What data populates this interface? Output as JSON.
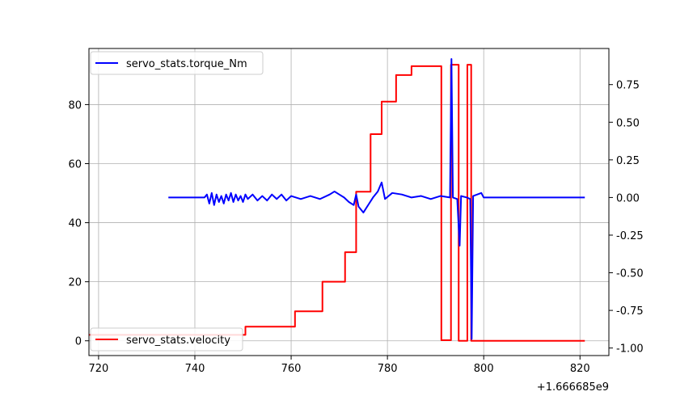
{
  "chart_data": {
    "type": "line",
    "x_offset_label": "+1.666685e9",
    "x_axis": {
      "lim": [
        718,
        826
      ],
      "ticks": [
        720,
        740,
        760,
        780,
        800,
        820
      ]
    },
    "y_left": {
      "lim": [
        -5,
        99
      ],
      "ticks": [
        0,
        20,
        40,
        60,
        80
      ]
    },
    "y_right": {
      "lim": [
        -1.05,
        0.99
      ],
      "ticks": [
        -1.0,
        -0.75,
        -0.5,
        -0.25,
        0.0,
        0.25,
        0.5,
        0.75
      ]
    },
    "grid": true,
    "series": [
      {
        "name": "servo_stats.velocity",
        "axis": "left",
        "color": "#ff0000",
        "legend_position": "lower-left",
        "points": [
          [
            718,
            2.0
          ],
          [
            750.5,
            2.0
          ],
          [
            750.5,
            4.8
          ],
          [
            760.8,
            4.8
          ],
          [
            760.8,
            10.0
          ],
          [
            766.5,
            10.0
          ],
          [
            766.5,
            20.0
          ],
          [
            771.2,
            20.0
          ],
          [
            771.2,
            30.0
          ],
          [
            773.5,
            30.0
          ],
          [
            773.5,
            50.5
          ],
          [
            776.5,
            50.5
          ],
          [
            776.5,
            70.0
          ],
          [
            778.8,
            70.0
          ],
          [
            778.8,
            81.0
          ],
          [
            781.8,
            81.0
          ],
          [
            781.8,
            90.0
          ],
          [
            785.0,
            90.0
          ],
          [
            785.0,
            93.0
          ],
          [
            791.2,
            93.0
          ],
          [
            791.2,
            0.2
          ],
          [
            793.2,
            0.2
          ],
          [
            793.2,
            93.5
          ],
          [
            794.8,
            93.5
          ],
          [
            794.8,
            0.0
          ],
          [
            796.6,
            0.0
          ],
          [
            796.6,
            93.5
          ],
          [
            797.4,
            93.5
          ],
          [
            797.4,
            0.0
          ],
          [
            821.0,
            0.0
          ]
        ]
      },
      {
        "name": "servo_stats.torque_Nm",
        "axis": "right",
        "color": "#0000ff",
        "legend_position": "upper-left",
        "points": [
          [
            734.5,
            0.0
          ],
          [
            742.0,
            0.0
          ],
          [
            742.5,
            0.02
          ],
          [
            743.0,
            -0.04
          ],
          [
            743.5,
            0.03
          ],
          [
            744.0,
            -0.05
          ],
          [
            744.5,
            0.02
          ],
          [
            745.0,
            -0.03
          ],
          [
            745.5,
            0.01
          ],
          [
            746.0,
            -0.04
          ],
          [
            746.5,
            0.02
          ],
          [
            747.0,
            -0.02
          ],
          [
            747.5,
            0.03
          ],
          [
            748.0,
            -0.03
          ],
          [
            748.5,
            0.02
          ],
          [
            749.0,
            -0.02
          ],
          [
            749.5,
            0.01
          ],
          [
            750.0,
            -0.03
          ],
          [
            750.5,
            0.02
          ],
          [
            751.0,
            -0.01
          ],
          [
            752.0,
            0.02
          ],
          [
            753.0,
            -0.02
          ],
          [
            754.0,
            0.01
          ],
          [
            755.0,
            -0.02
          ],
          [
            756.0,
            0.02
          ],
          [
            757.0,
            -0.01
          ],
          [
            758.0,
            0.02
          ],
          [
            759.0,
            -0.02
          ],
          [
            760.0,
            0.01
          ],
          [
            762.0,
            -0.01
          ],
          [
            764.0,
            0.01
          ],
          [
            766.0,
            -0.01
          ],
          [
            768.0,
            0.02
          ],
          [
            769.0,
            0.04
          ],
          [
            770.0,
            0.02
          ],
          [
            771.0,
            0.0
          ],
          [
            772.0,
            -0.03
          ],
          [
            773.0,
            -0.05
          ],
          [
            773.5,
            0.02
          ],
          [
            774.0,
            -0.06
          ],
          [
            775.0,
            -0.1
          ],
          [
            776.0,
            -0.05
          ],
          [
            777.0,
            0.0
          ],
          [
            778.0,
            0.04
          ],
          [
            778.8,
            0.1
          ],
          [
            779.5,
            -0.01
          ],
          [
            781.0,
            0.03
          ],
          [
            783.0,
            0.02
          ],
          [
            785.0,
            0.0
          ],
          [
            787.0,
            0.01
          ],
          [
            789.0,
            -0.01
          ],
          [
            791.0,
            0.01
          ],
          [
            793.0,
            0.0
          ],
          [
            793.3,
            0.92
          ],
          [
            793.6,
            0.0
          ],
          [
            794.5,
            -0.01
          ],
          [
            795.0,
            -0.32
          ],
          [
            795.3,
            0.01
          ],
          [
            796.5,
            0.0
          ],
          [
            797.2,
            -0.01
          ],
          [
            797.5,
            -0.94
          ],
          [
            797.8,
            0.01
          ],
          [
            799.5,
            0.03
          ],
          [
            800.0,
            0.0
          ],
          [
            821.0,
            0.0
          ]
        ]
      }
    ]
  }
}
